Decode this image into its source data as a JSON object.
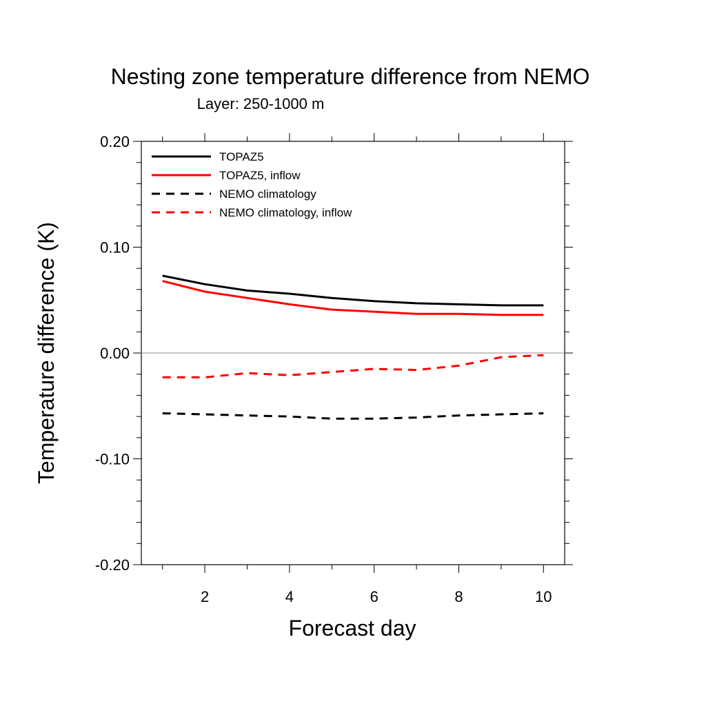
{
  "chart_data": {
    "type": "line",
    "title": "Nesting zone temperature difference from NEMO",
    "subtitle": "Layer: 250-1000 m",
    "xlabel": "Forecast day",
    "ylabel": "Temperature difference (K)",
    "xlim": [
      0.5,
      10.5
    ],
    "ylim": [
      -0.2,
      0.2
    ],
    "x_ticks": [
      2,
      4,
      6,
      8,
      10
    ],
    "x_tick_labels": [
      "2",
      "4",
      "6",
      "8",
      "10"
    ],
    "y_ticks": [
      -0.2,
      -0.1,
      0.0,
      0.1,
      0.2
    ],
    "y_tick_labels": [
      "-0.20",
      "-0.10",
      "0.00",
      "0.10",
      "0.20"
    ],
    "zero_line": true,
    "grid": false,
    "legend_position": "top-left",
    "x": [
      1,
      2,
      3,
      4,
      5,
      6,
      7,
      8,
      9,
      10
    ],
    "series": [
      {
        "name": "TOPAZ5",
        "color": "#000000",
        "dash": "solid",
        "values": [
          0.073,
          0.065,
          0.059,
          0.056,
          0.052,
          0.049,
          0.047,
          0.046,
          0.045,
          0.045
        ]
      },
      {
        "name": "TOPAZ5, inflow",
        "color": "#ff0000",
        "dash": "solid",
        "values": [
          0.068,
          0.058,
          0.052,
          0.046,
          0.041,
          0.039,
          0.037,
          0.037,
          0.036,
          0.036
        ]
      },
      {
        "name": "NEMO climatology",
        "color": "#000000",
        "dash": "dashed",
        "values": [
          -0.057,
          -0.058,
          -0.059,
          -0.06,
          -0.062,
          -0.062,
          -0.061,
          -0.059,
          -0.058,
          -0.057
        ]
      },
      {
        "name": "NEMO climatology, inflow",
        "color": "#ff0000",
        "dash": "dashed",
        "values": [
          -0.023,
          -0.023,
          -0.019,
          -0.021,
          -0.018,
          -0.015,
          -0.016,
          -0.012,
          -0.004,
          -0.002
        ]
      }
    ]
  }
}
